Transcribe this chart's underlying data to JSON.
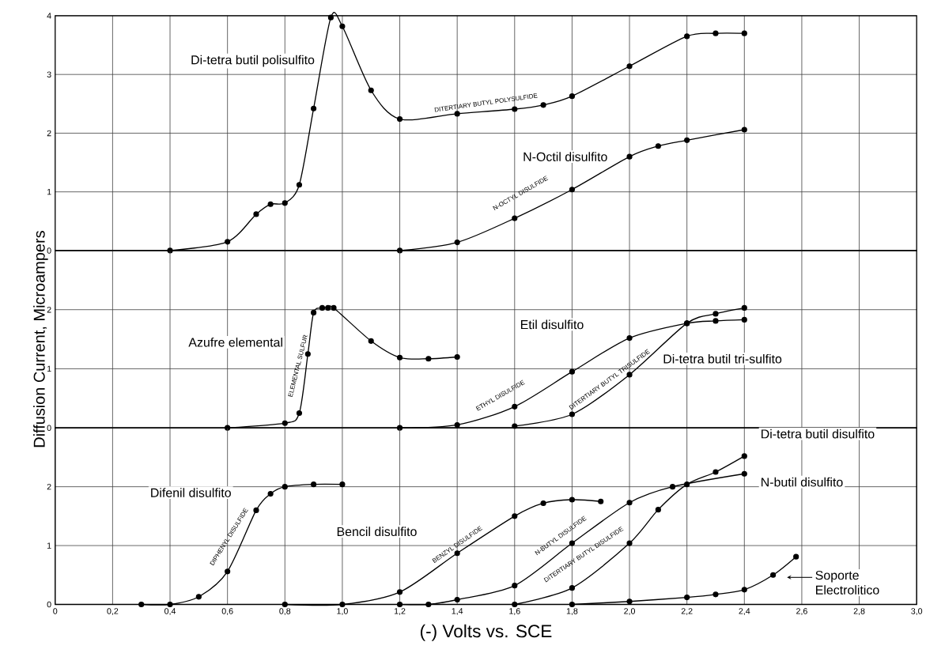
{
  "chart_data": [
    {
      "type": "line",
      "xlim": [
        0,
        3
      ],
      "ylim": [
        0,
        4
      ],
      "yticks": [
        0,
        1,
        2,
        3,
        4
      ],
      "xticks": [
        {
          "value": 0.2,
          "label": null
        },
        {
          "value": 0.4,
          "label": null
        },
        {
          "value": 0.6,
          "label": null
        },
        {
          "value": 0.8,
          "label": null
        },
        {
          "value": 1.0,
          "label": null
        },
        {
          "value": 1.2,
          "label": null
        },
        {
          "value": 1.4,
          "label": null
        },
        {
          "value": 1.6,
          "label": null
        },
        {
          "value": 1.8,
          "label": null
        },
        {
          "value": 2.0,
          "label": null
        },
        {
          "value": 2.2,
          "label": null
        },
        {
          "value": 2.4,
          "label": null
        },
        {
          "value": 2.6,
          "label": null
        },
        {
          "value": 2.8,
          "label": null
        }
      ],
      "grid": true,
      "marker": "circle",
      "tick_labels": "y",
      "series": [
        {
          "name": "Di-tetra butil polisulfito",
          "color": "#000000",
          "x": [
            0.4,
            0.6,
            0.7,
            0.75,
            0.8,
            0.85,
            0.9,
            0.96,
            1.0,
            1.1,
            1.2,
            1.4,
            1.6,
            1.7,
            1.8,
            2.0,
            2.2,
            2.3,
            2.4
          ],
          "values": [
            0,
            0.15,
            0.62,
            0.79,
            0.81,
            1.12,
            2.42,
            3.97,
            3.82,
            2.73,
            2.24,
            2.33,
            2.41,
            2.48,
            2.63,
            3.14,
            3.65,
            3.7,
            3.7
          ]
        },
        {
          "name": "N-Octil disulfito",
          "color": "#000000",
          "x": [
            1.2,
            1.4,
            1.6,
            1.8,
            2.0,
            2.1,
            2.2,
            2.4
          ],
          "values": [
            0,
            0.14,
            0.55,
            1.04,
            1.6,
            1.78,
            1.88,
            2.06
          ]
        }
      ],
      "annotations": [
        "DITERTIARY BUTYL POLYSULFIDE",
        "N-OCTYL DISULFIDE"
      ]
    },
    {
      "type": "line",
      "xlim": [
        0,
        3
      ],
      "ylim": [
        0,
        3
      ],
      "yticks": [
        0,
        1,
        2
      ],
      "xticks": [
        {
          "value": 0.2,
          "label": null
        },
        {
          "value": 0.4,
          "label": null
        },
        {
          "value": 0.6,
          "label": null
        },
        {
          "value": 0.8,
          "label": null
        },
        {
          "value": 1.0,
          "label": null
        },
        {
          "value": 1.2,
          "label": null
        },
        {
          "value": 1.4,
          "label": null
        },
        {
          "value": 1.6,
          "label": null
        },
        {
          "value": 1.8,
          "label": null
        },
        {
          "value": 2.0,
          "label": null
        },
        {
          "value": 2.2,
          "label": null
        },
        {
          "value": 2.4,
          "label": null
        },
        {
          "value": 2.6,
          "label": null
        },
        {
          "value": 2.8,
          "label": null
        }
      ],
      "grid": true,
      "marker": "circle",
      "tick_labels": "y",
      "ylabel": "Diffusion Current, Microampers",
      "series": [
        {
          "name": "Azufre elemental",
          "color": "#000000",
          "x": [
            0.6,
            0.8,
            0.85,
            0.88,
            0.9,
            0.93,
            0.95,
            0.97,
            1.1,
            1.2,
            1.3,
            1.4
          ],
          "values": [
            0,
            0.08,
            0.25,
            1.25,
            1.95,
            2.03,
            2.03,
            2.03,
            1.47,
            1.19,
            1.17,
            1.2
          ]
        },
        {
          "name": "Etil disulfito",
          "color": "#000000",
          "x": [
            1.2,
            1.4,
            1.6,
            1.8,
            2.0,
            2.2,
            2.3,
            2.4
          ],
          "values": [
            0,
            0.05,
            0.36,
            0.95,
            1.52,
            1.77,
            1.81,
            1.83
          ]
        },
        {
          "name": "Di-tetra butil tri-sulfito",
          "color": "#000000",
          "x": [
            1.6,
            1.8,
            2.0,
            2.2,
            2.3,
            2.4
          ],
          "values": [
            0.03,
            0.23,
            0.9,
            1.77,
            1.93,
            2.03
          ]
        }
      ],
      "annotations": [
        "ELEMENTAL SULFUR",
        "ETHYL DISULFIDE",
        "DITERTIARY BUTYL TRISULFIDE"
      ]
    },
    {
      "type": "line",
      "xlim": [
        0,
        3
      ],
      "ylim": [
        0,
        3
      ],
      "yticks": [
        0,
        1,
        2
      ],
      "xticks": [
        0,
        {
          "value": 0.2,
          "label": "0,2"
        },
        {
          "value": 0.4,
          "label": "0,4"
        },
        {
          "value": 0.6,
          "label": "0,6"
        },
        {
          "value": 0.8,
          "label": "0,8"
        },
        {
          "value": 1.0,
          "label": "1,0"
        },
        {
          "value": 1.2,
          "label": "1,2"
        },
        {
          "value": 1.4,
          "label": "1,4"
        },
        {
          "value": 1.6,
          "label": "1,6"
        },
        {
          "value": 1.8,
          "label": "1,8"
        },
        {
          "value": 2.0,
          "label": "2,0"
        },
        {
          "value": 2.2,
          "label": "2,2"
        },
        {
          "value": 2.4,
          "label": "2,4"
        },
        {
          "value": 2.6,
          "label": "2,6"
        },
        {
          "value": 2.8,
          "label": "2,8"
        },
        {
          "value": 3.0,
          "label": "3,0"
        }
      ],
      "grid": true,
      "marker": "circle",
      "xlabel": "(-) Volts vs. SCE",
      "series": [
        {
          "name": "Difenil disulfito",
          "color": "#000000",
          "x": [
            0.3,
            0.4,
            0.5,
            0.6,
            0.7,
            0.75,
            0.8,
            0.9,
            1.0
          ],
          "values": [
            0,
            0,
            0.13,
            0.56,
            1.6,
            1.88,
            2.0,
            2.04,
            2.04
          ]
        },
        {
          "name": "Bencil disulfito",
          "color": "#000000",
          "x": [
            0.8,
            1.0,
            1.2,
            1.4,
            1.6,
            1.7,
            1.8,
            1.9
          ],
          "values": [
            0,
            0,
            0.21,
            0.87,
            1.5,
            1.72,
            1.78,
            1.75
          ]
        },
        {
          "name": "N-butil disulfito",
          "color": "#000000",
          "x": [
            1.2,
            1.3,
            1.4,
            1.6,
            1.8,
            2.0,
            2.15,
            2.4
          ],
          "values": [
            0,
            0,
            0.08,
            0.32,
            1.04,
            1.73,
            2.0,
            2.22
          ]
        },
        {
          "name": "Di-tetra butil disulfito",
          "color": "#000000",
          "x": [
            1.6,
            1.8,
            2.0,
            2.1,
            2.2,
            2.3,
            2.4
          ],
          "values": [
            0,
            0.28,
            1.04,
            1.61,
            2.04,
            2.25,
            2.52
          ]
        },
        {
          "name": "Soporte Electrolitico",
          "color": "#000000",
          "x": [
            1.8,
            2.0,
            2.2,
            2.3,
            2.4,
            2.5,
            2.58
          ],
          "values": [
            0,
            0.05,
            0.12,
            0.17,
            0.25,
            0.5,
            0.81
          ]
        }
      ],
      "annotations": [
        "DIPHENYL DISULFIDE",
        "BENZYL DISULFIDE",
        "N-BUTYL DISULFIDE",
        "DITERTIARY BUTYL DISULFIDE"
      ]
    }
  ]
}
